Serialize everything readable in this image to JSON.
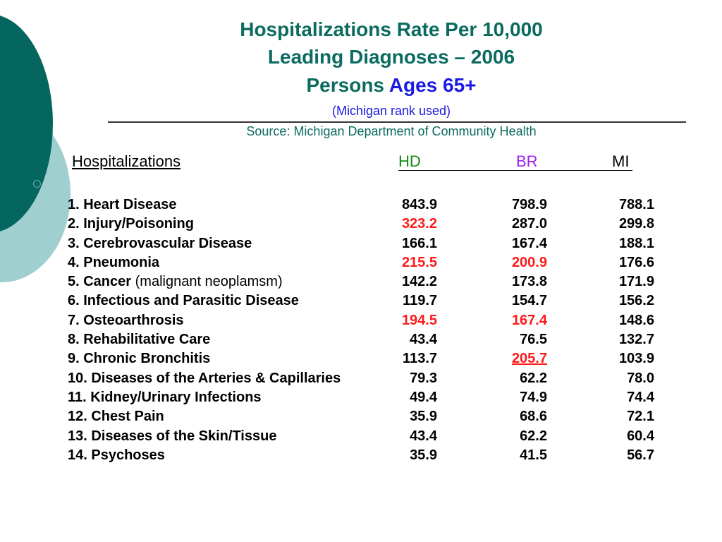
{
  "title": {
    "line1": "Hospitalizations Rate Per 10,000",
    "line2": "Leading Diagnoses – 2006",
    "line3_prefix": "Persons ",
    "line3_accent": "Ages 65+",
    "subtitle": "(Michigan rank used)",
    "source": "Source: Michigan Department of Community Health"
  },
  "header": {
    "hospitalizations": "Hospitalizations",
    "hd": "HD",
    "br": "BR",
    "mi": "MI"
  },
  "colors": {
    "title": "#0b6b5f",
    "accent": "#1a1ae0",
    "highlight": "#ff1a1a",
    "hd": "#138a13",
    "br": "#a020f0"
  },
  "rows": [
    {
      "label": "1. Heart Disease",
      "note": "",
      "hd": "843.9",
      "br": "798.9",
      "mi": "788.1"
    },
    {
      "label": "2. Injury/Poisoning",
      "note": "",
      "hd": "323.2",
      "br": "287.0",
      "mi": "299.8"
    },
    {
      "label": "3. Cerebrovascular Disease",
      "note": "",
      "hd": "166.1",
      "br": "167.4",
      "mi": "188.1"
    },
    {
      "label": "4. Pneumonia",
      "note": "",
      "hd": "215.5",
      "br": "200.9",
      "mi": "176.6"
    },
    {
      "label": "5. Cancer",
      "note": "(malignant neoplamsm)",
      "hd": "142.2",
      "br": "173.8",
      "mi": "171.9"
    },
    {
      "label": "6. Infectious and Parasitic Disease",
      "note": "",
      "hd": "119.7",
      "br": "154.7",
      "mi": "156.2"
    },
    {
      "label": "7. Osteoarthrosis",
      "note": "",
      "hd": "194.5",
      "br": "167.4",
      "mi": "148.6"
    },
    {
      "label": "8. Rehabilitative Care",
      "note": "",
      "hd": "43.4",
      "br": "76.5",
      "mi": "132.7"
    },
    {
      "label": "9. Chronic Bronchitis",
      "note": "",
      "hd": "113.7",
      "br": "205.7",
      "mi": "103.9"
    },
    {
      "label": "10. Diseases of the Arteries & Capillaries",
      "note": "",
      "hd": "79.3",
      "br": "62.2",
      "mi": "78.0"
    },
    {
      "label": "11. Kidney/Urinary Infections",
      "note": "",
      "hd": "49.4",
      "br": "74.9",
      "mi": "74.4"
    },
    {
      "label": "12. Chest Pain",
      "note": "",
      "hd": "35.9",
      "br": "68.6",
      "mi": "72.1"
    },
    {
      "label": "13. Diseases of the Skin/Tissue",
      "note": "",
      "hd": "43.4",
      "br": "62.2",
      "mi": "60.4"
    },
    {
      "label": "14. Psychoses",
      "note": "",
      "hd": "35.9",
      "br": "41.5",
      "mi": "56.7"
    }
  ]
}
